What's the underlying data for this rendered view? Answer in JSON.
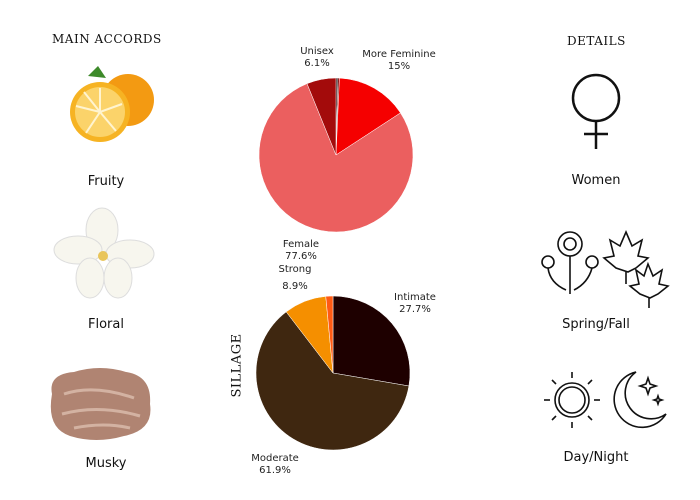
{
  "main_accords": {
    "title": "MAIN ACCORDS",
    "items": [
      {
        "label": "Fruity",
        "icon": "orange-image"
      },
      {
        "label": "Floral",
        "icon": "white-flower-image"
      },
      {
        "label": "Musky",
        "icon": "musk-fiber-image"
      }
    ]
  },
  "details": {
    "title": "DETAILS",
    "items": [
      {
        "label": "Women",
        "icon": "venus-icon"
      },
      {
        "label": "Spring/Fall",
        "icon": "flowers-leaves-icon"
      },
      {
        "label": "Day/Night",
        "icon": "sun-moon-icon"
      }
    ]
  },
  "chart_data": [
    {
      "type": "pie",
      "start": "top",
      "direction": "clockwise",
      "slices": [
        {
          "name": "",
          "value": 0.4,
          "color": "#1a0000",
          "label": ""
        },
        {
          "name": "",
          "value": 0.3,
          "color": "#7a0000",
          "label": ""
        },
        {
          "name": "More Feminine",
          "value": 15,
          "color": "#f50000",
          "label": "15%"
        },
        {
          "name": "Female",
          "value": 77.6,
          "color": "#eb5f5f",
          "label": "77.6%"
        },
        {
          "name": "Unisex",
          "value": 6.1,
          "color": "#a30b0b",
          "label": "6.1%"
        }
      ]
    },
    {
      "type": "pie",
      "title": "SILLAGE",
      "start": "top",
      "direction": "clockwise",
      "slices": [
        {
          "name": "Intimate",
          "value": 27.7,
          "color": "#1e0000",
          "label": "27.7%"
        },
        {
          "name": "Moderate",
          "value": 61.9,
          "color": "#3f2710",
          "label": "61.9%"
        },
        {
          "name": "Strong",
          "value": 8.9,
          "color": "#f58f00",
          "label": "8.9%"
        },
        {
          "name": "",
          "value": 1.5,
          "color": "#ff5a14",
          "label": ""
        }
      ]
    }
  ]
}
